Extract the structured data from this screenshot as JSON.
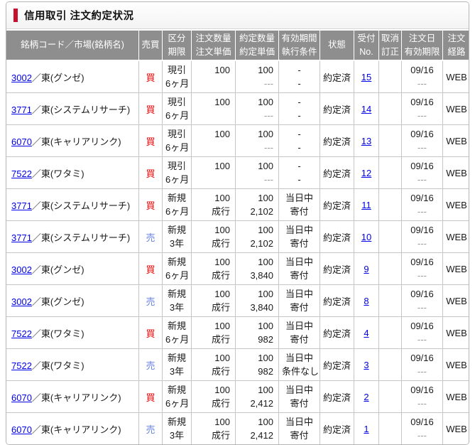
{
  "colors": {
    "accent": "#c8102e",
    "buy": "#e60000",
    "sell": "#6680e0",
    "header-bg": "#8e8e8e",
    "link": "#0000e8",
    "muted": "#999999",
    "border": "#c6c6c6"
  },
  "header": {
    "title": "信用取引 注文約定状況"
  },
  "table": {
    "columns": [
      {
        "id": "stock",
        "lines": [
          "銘柄コード／市場(銘柄名)"
        ]
      },
      {
        "id": "side",
        "lines": [
          "売買"
        ]
      },
      {
        "id": "kubun",
        "lines": [
          "区分",
          "期限"
        ]
      },
      {
        "id": "order",
        "lines": [
          "注文数量",
          "注文単価"
        ]
      },
      {
        "id": "exec",
        "lines": [
          "約定数量",
          "約定単価"
        ]
      },
      {
        "id": "valid",
        "lines": [
          "有効期間",
          "執行条件"
        ]
      },
      {
        "id": "status",
        "lines": [
          "状態"
        ]
      },
      {
        "id": "receipt",
        "lines": [
          "受付",
          "No."
        ]
      },
      {
        "id": "cancel",
        "lines": [
          "取消",
          "訂正"
        ]
      },
      {
        "id": "date",
        "lines": [
          "注文日",
          "有効期限"
        ]
      },
      {
        "id": "route",
        "lines": [
          "注文",
          "経路"
        ]
      }
    ],
    "rows": [
      {
        "code": "3002",
        "market": "／東(グンゼ)",
        "side": "買",
        "side_type": "buy",
        "kubun": "現引",
        "kigen": "6ヶ月",
        "order_qty": "100",
        "order_price": "",
        "exec_qty": "100",
        "exec_price": "---",
        "valid_period": "-",
        "exec_cond": "-",
        "status": "約定済",
        "receipt_no": "15",
        "cancel": "",
        "order_date": "09/16",
        "expiry": "---",
        "route": "WEB"
      },
      {
        "code": "3771",
        "market": "／東(システムリサーチ)",
        "side": "買",
        "side_type": "buy",
        "kubun": "現引",
        "kigen": "6ヶ月",
        "order_qty": "100",
        "order_price": "",
        "exec_qty": "100",
        "exec_price": "---",
        "valid_period": "-",
        "exec_cond": "-",
        "status": "約定済",
        "receipt_no": "14",
        "cancel": "",
        "order_date": "09/16",
        "expiry": "---",
        "route": "WEB"
      },
      {
        "code": "6070",
        "market": "／東(キャリアリンク)",
        "side": "買",
        "side_type": "buy",
        "kubun": "現引",
        "kigen": "6ヶ月",
        "order_qty": "100",
        "order_price": "",
        "exec_qty": "100",
        "exec_price": "---",
        "valid_period": "-",
        "exec_cond": "-",
        "status": "約定済",
        "receipt_no": "13",
        "cancel": "",
        "order_date": "09/16",
        "expiry": "---",
        "route": "WEB"
      },
      {
        "code": "7522",
        "market": "／東(ワタミ)",
        "side": "買",
        "side_type": "buy",
        "kubun": "現引",
        "kigen": "6ヶ月",
        "order_qty": "100",
        "order_price": "",
        "exec_qty": "100",
        "exec_price": "---",
        "valid_period": "-",
        "exec_cond": "-",
        "status": "約定済",
        "receipt_no": "12",
        "cancel": "",
        "order_date": "09/16",
        "expiry": "---",
        "route": "WEB"
      },
      {
        "code": "3771",
        "market": "／東(システムリサーチ)",
        "side": "買",
        "side_type": "buy",
        "kubun": "新規",
        "kigen": "6ヶ月",
        "order_qty": "100",
        "order_price": "成行",
        "exec_qty": "100",
        "exec_price": "2,102",
        "valid_period": "当日中",
        "exec_cond": "寄付",
        "status": "約定済",
        "receipt_no": "11",
        "cancel": "",
        "order_date": "09/16",
        "expiry": "---",
        "route": "WEB"
      },
      {
        "code": "3771",
        "market": "／東(システムリサーチ)",
        "side": "売",
        "side_type": "sell",
        "kubun": "新規",
        "kigen": "3年",
        "order_qty": "100",
        "order_price": "成行",
        "exec_qty": "100",
        "exec_price": "2,102",
        "valid_period": "当日中",
        "exec_cond": "寄付",
        "status": "約定済",
        "receipt_no": "10",
        "cancel": "",
        "order_date": "09/16",
        "expiry": "---",
        "route": "WEB"
      },
      {
        "code": "3002",
        "market": "／東(グンゼ)",
        "side": "買",
        "side_type": "buy",
        "kubun": "新規",
        "kigen": "6ヶ月",
        "order_qty": "100",
        "order_price": "成行",
        "exec_qty": "100",
        "exec_price": "3,840",
        "valid_period": "当日中",
        "exec_cond": "寄付",
        "status": "約定済",
        "receipt_no": "9",
        "cancel": "",
        "order_date": "09/16",
        "expiry": "---",
        "route": "WEB"
      },
      {
        "code": "3002",
        "market": "／東(グンゼ)",
        "side": "売",
        "side_type": "sell",
        "kubun": "新規",
        "kigen": "3年",
        "order_qty": "100",
        "order_price": "成行",
        "exec_qty": "100",
        "exec_price": "3,840",
        "valid_period": "当日中",
        "exec_cond": "寄付",
        "status": "約定済",
        "receipt_no": "8",
        "cancel": "",
        "order_date": "09/16",
        "expiry": "---",
        "route": "WEB"
      },
      {
        "code": "7522",
        "market": "／東(ワタミ)",
        "side": "買",
        "side_type": "buy",
        "kubun": "新規",
        "kigen": "6ヶ月",
        "order_qty": "100",
        "order_price": "成行",
        "exec_qty": "100",
        "exec_price": "982",
        "valid_period": "当日中",
        "exec_cond": "寄付",
        "status": "約定済",
        "receipt_no": "4",
        "cancel": "",
        "order_date": "09/16",
        "expiry": "---",
        "route": "WEB"
      },
      {
        "code": "7522",
        "market": "／東(ワタミ)",
        "side": "売",
        "side_type": "sell",
        "kubun": "新規",
        "kigen": "3年",
        "order_qty": "100",
        "order_price": "成行",
        "exec_qty": "100",
        "exec_price": "982",
        "valid_period": "当日中",
        "exec_cond": "条件なし",
        "status": "約定済",
        "receipt_no": "3",
        "cancel": "",
        "order_date": "09/16",
        "expiry": "---",
        "route": "WEB"
      },
      {
        "code": "6070",
        "market": "／東(キャリアリンク)",
        "side": "買",
        "side_type": "buy",
        "kubun": "新規",
        "kigen": "6ヶ月",
        "order_qty": "100",
        "order_price": "成行",
        "exec_qty": "100",
        "exec_price": "2,412",
        "valid_period": "当日中",
        "exec_cond": "寄付",
        "status": "約定済",
        "receipt_no": "2",
        "cancel": "",
        "order_date": "09/16",
        "expiry": "---",
        "route": "WEB"
      },
      {
        "code": "6070",
        "market": "／東(キャリアリンク)",
        "side": "売",
        "side_type": "sell",
        "kubun": "新規",
        "kigen": "3年",
        "order_qty": "100",
        "order_price": "成行",
        "exec_qty": "100",
        "exec_price": "2,412",
        "valid_period": "当日中",
        "exec_cond": "寄付",
        "status": "約定済",
        "receipt_no": "1",
        "cancel": "",
        "order_date": "09/16",
        "expiry": "---",
        "route": "WEB"
      }
    ]
  }
}
